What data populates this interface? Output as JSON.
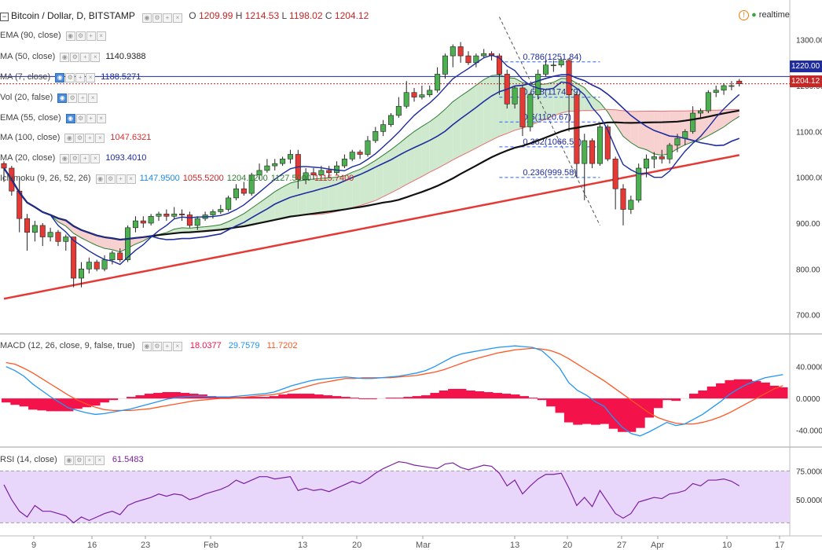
{
  "symbol_title": "Bitcoin / Dollar, D, BITSTAMP",
  "ohlc": {
    "o_label": "O",
    "o": "1209.99",
    "h_label": "H",
    "h": "1214.53",
    "l_label": "L",
    "l": "1198.02",
    "c_label": "C",
    "c": "1204.12"
  },
  "realtime_label": "realtime",
  "colors": {
    "up": "#4caf50",
    "down": "#e53935",
    "ma7": "#1e2c9e",
    "ema90": "#e53935",
    "ma50": "#111111",
    "macd": "#2196f3",
    "signal": "#ff5722",
    "hist": "#f3124a",
    "rsi": "#7b1fa2",
    "rsi_band": "#e9d7fb",
    "cloud_up": "#cfe9cf",
    "cloud_down": "#f7d0d0"
  },
  "overlays": [
    {
      "name": "EMA (90, close)",
      "value": "",
      "color": "#777"
    },
    {
      "name": "MA (50, close)",
      "value": "1140.9388",
      "color": "#222"
    },
    {
      "name": "MA (7, close)",
      "value": "1188.5271",
      "color": "#1e2c9e"
    },
    {
      "name": "Vol (20, false)",
      "value": "",
      "color": "#777"
    },
    {
      "name": "EMA (55, close)",
      "value": "",
      "color": "#777"
    },
    {
      "name": "MA (100, close)",
      "value": "1047.6321",
      "color": "#d32f2f"
    },
    {
      "name": "MA (20, close)",
      "value": "1093.4010",
      "color": "#1e2c9e"
    }
  ],
  "ichimoku": {
    "name": "Ichimoku (9, 26, 52, 26)",
    "values": [
      "1147.9500",
      "1055.5200",
      "1204.1200",
      "1127.5000",
      "1115.7400"
    ]
  },
  "price_axis": [
    "1300.00",
    "1200.00",
    "1100.00",
    "1000.00",
    "900.00",
    "800.00",
    "700.00"
  ],
  "price_tags": {
    "line1": "1220.00",
    "line2": "1204.12"
  },
  "fib_levels": [
    {
      "label": "0.786(1251.84)",
      "price": 1251.84
    },
    {
      "label": "0.618(1174.79)",
      "price": 1174.79
    },
    {
      "label": "0.5(1120.67)",
      "price": 1120.67
    },
    {
      "label": "0.382(1066.54)",
      "price": 1066.54
    },
    {
      "label": "0.236(999.58)",
      "price": 999.58
    }
  ],
  "macd": {
    "name": "MACD (12, 26, close, 9, false, true)",
    "values": [
      "18.0377",
      "29.7579",
      "11.7202"
    ],
    "axis": [
      "40.0000",
      "0.0000",
      "-40.0000"
    ]
  },
  "rsi": {
    "name": "RSI (14, close)",
    "value": "61.5483",
    "axis": [
      "75.0000",
      "50.0000"
    ]
  },
  "x_axis": [
    "9",
    "16",
    "23",
    "Feb",
    "13",
    "20",
    "Mar",
    "13",
    "20",
    "27",
    "Apr",
    "10",
    "17"
  ],
  "chart_data": [
    {
      "type": "candlestick",
      "title": "Bitcoin / Dollar, D, BITSTAMP",
      "ylim": [
        660,
        1380
      ],
      "x_start": "2017-01-02",
      "x_end": "2017-04-18",
      "candles": [
        [
          1030,
          1020,
          1035,
          990
        ],
        [
          1020,
          970,
          1025,
          960
        ],
        [
          970,
          910,
          1000,
          880
        ],
        [
          910,
          880,
          920,
          840
        ],
        [
          880,
          895,
          905,
          860
        ],
        [
          895,
          870,
          900,
          850
        ],
        [
          870,
          880,
          890,
          860
        ],
        [
          880,
          860,
          885,
          850
        ],
        [
          860,
          870,
          875,
          840
        ],
        [
          870,
          780,
          870,
          760
        ],
        [
          780,
          800,
          815,
          760
        ],
        [
          800,
          815,
          825,
          790
        ],
        [
          815,
          800,
          820,
          795
        ],
        [
          800,
          820,
          830,
          795
        ],
        [
          820,
          835,
          840,
          810
        ],
        [
          835,
          820,
          845,
          815
        ],
        [
          820,
          890,
          895,
          815
        ],
        [
          890,
          905,
          915,
          880
        ],
        [
          905,
          900,
          915,
          890
        ],
        [
          900,
          915,
          920,
          895
        ],
        [
          915,
          920,
          925,
          905
        ],
        [
          920,
          915,
          930,
          905
        ],
        [
          915,
          920,
          935,
          910
        ],
        [
          920,
          918,
          930,
          905
        ],
        [
          918,
          895,
          925,
          890
        ],
        [
          895,
          910,
          915,
          885
        ],
        [
          910,
          918,
          925,
          905
        ],
        [
          918,
          925,
          930,
          910
        ],
        [
          925,
          930,
          940,
          920
        ],
        [
          930,
          955,
          960,
          925
        ],
        [
          955,
          975,
          985,
          950
        ],
        [
          975,
          965,
          990,
          960
        ],
        [
          965,
          1005,
          1010,
          960
        ],
        [
          1005,
          1015,
          1030,
          995
        ],
        [
          1015,
          1025,
          1040,
          1010
        ],
        [
          1025,
          1030,
          1040,
          1015
        ],
        [
          1030,
          1040,
          1045,
          1025
        ],
        [
          1040,
          1050,
          1060,
          1030
        ],
        [
          1050,
          995,
          1060,
          975
        ],
        [
          995,
          1010,
          1020,
          985
        ],
        [
          1010,
          1005,
          1020,
          995
        ],
        [
          1005,
          1015,
          1025,
          1000
        ],
        [
          1015,
          1010,
          1025,
          1000
        ],
        [
          1010,
          1025,
          1035,
          1005
        ],
        [
          1025,
          1040,
          1050,
          1020
        ],
        [
          1040,
          1055,
          1060,
          1035
        ],
        [
          1055,
          1050,
          1060,
          1040
        ],
        [
          1050,
          1080,
          1090,
          1045
        ],
        [
          1080,
          1100,
          1110,
          1075
        ],
        [
          1100,
          1115,
          1125,
          1090
        ],
        [
          1115,
          1135,
          1140,
          1110
        ],
        [
          1135,
          1155,
          1175,
          1130
        ],
        [
          1155,
          1185,
          1210,
          1150
        ],
        [
          1185,
          1175,
          1195,
          1165
        ],
        [
          1175,
          1180,
          1200,
          1170
        ],
        [
          1180,
          1190,
          1200,
          1175
        ],
        [
          1190,
          1225,
          1240,
          1185
        ],
        [
          1225,
          1265,
          1270,
          1215
        ],
        [
          1265,
          1285,
          1290,
          1240
        ],
        [
          1285,
          1265,
          1295,
          1250
        ],
        [
          1265,
          1250,
          1275,
          1245
        ],
        [
          1250,
          1265,
          1270,
          1240
        ],
        [
          1265,
          1270,
          1280,
          1260
        ],
        [
          1270,
          1265,
          1275,
          1255
        ],
        [
          1265,
          1225,
          1270,
          1180
        ],
        [
          1225,
          1160,
          1235,
          1150
        ],
        [
          1160,
          1195,
          1200,
          1150
        ],
        [
          1195,
          1110,
          1200,
          1090
        ],
        [
          1110,
          1180,
          1185,
          1100
        ],
        [
          1180,
          1225,
          1235,
          1170
        ],
        [
          1225,
          1245,
          1255,
          1220
        ],
        [
          1245,
          1245,
          1255,
          1230
        ],
        [
          1245,
          1255,
          1260,
          1240
        ],
        [
          1255,
          1180,
          1260,
          1100
        ],
        [
          1180,
          1030,
          1185,
          1000
        ],
        [
          1030,
          1080,
          1095,
          950
        ],
        [
          1080,
          1030,
          1085,
          1020
        ],
        [
          1030,
          1110,
          1115,
          1025
        ],
        [
          1110,
          1040,
          1115,
          1035
        ],
        [
          1040,
          975,
          1045,
          930
        ],
        [
          975,
          930,
          985,
          895
        ],
        [
          930,
          950,
          960,
          920
        ],
        [
          950,
          1020,
          1030,
          945
        ],
        [
          1020,
          1040,
          1050,
          1000
        ],
        [
          1040,
          1045,
          1055,
          1020
        ],
        [
          1045,
          1040,
          1060,
          1030
        ],
        [
          1040,
          1070,
          1075,
          1030
        ],
        [
          1070,
          1085,
          1095,
          1055
        ],
        [
          1085,
          1100,
          1105,
          1070
        ],
        [
          1100,
          1140,
          1155,
          1095
        ],
        [
          1140,
          1145,
          1150,
          1130
        ],
        [
          1145,
          1185,
          1190,
          1140
        ],
        [
          1185,
          1190,
          1200,
          1175
        ],
        [
          1190,
          1200,
          1205,
          1180
        ],
        [
          1200,
          1200,
          1210,
          1190
        ],
        [
          1209.99,
          1204.12,
          1214.53,
          1198.02
        ]
      ],
      "series": [
        {
          "name": "MA (7, close)",
          "values": []
        },
        {
          "name": "MA (50, close)",
          "values": []
        },
        {
          "name": "MA (100, close)",
          "values": []
        }
      ]
    },
    {
      "type": "line",
      "title": "MACD (12, 26, close, 9, false, true)",
      "ylim": [
        -60,
        80
      ],
      "series": [
        {
          "name": "MACD",
          "values": [
            40,
            35,
            28,
            18,
            10,
            2,
            -5,
            -12,
            -15,
            -18,
            -20,
            -19,
            -17,
            -15,
            -13,
            -10,
            -7,
            -4,
            -1,
            1,
            2,
            3,
            3,
            2,
            2,
            2,
            3,
            4,
            5,
            6,
            8,
            12,
            16,
            19,
            22,
            24,
            25,
            26,
            27,
            26,
            25,
            25,
            26,
            27,
            28,
            30,
            32,
            35,
            40,
            46,
            52,
            56,
            58,
            60,
            62,
            64,
            65,
            66,
            65,
            64,
            60,
            50,
            38,
            20,
            10,
            4,
            -4,
            -10,
            -24,
            -36,
            -44,
            -47,
            -42,
            -36,
            -30,
            -34,
            -32,
            -26,
            -20,
            -12,
            -4,
            5,
            12,
            18,
            22,
            26,
            28,
            30
          ]
        },
        {
          "name": "Signal",
          "values": [
            45,
            43,
            38,
            32,
            25,
            18,
            11,
            4,
            -2,
            -7,
            -11,
            -14,
            -15,
            -15,
            -15,
            -14,
            -13,
            -11,
            -9,
            -7,
            -5,
            -3,
            -2,
            -1,
            0,
            0,
            1,
            2,
            3,
            4,
            5,
            7,
            10,
            13,
            16,
            19,
            21,
            23,
            25,
            25,
            26,
            26,
            26,
            26,
            27,
            28,
            29,
            31,
            33,
            36,
            40,
            44,
            48,
            51,
            54,
            57,
            59,
            61,
            62,
            63,
            62,
            60,
            56,
            50,
            43,
            36,
            29,
            22,
            14,
            6,
            -2,
            -10,
            -18,
            -24,
            -28,
            -31,
            -32,
            -32,
            -30,
            -27,
            -23,
            -18,
            -12,
            -6,
            0,
            6,
            12,
            16
          ]
        },
        {
          "name": "Histogram",
          "values": [
            -5,
            -8,
            -10,
            -14,
            -15,
            -16,
            -16,
            -16,
            -13,
            -11,
            -9,
            -5,
            -2,
            0,
            2,
            4,
            6,
            7,
            8,
            8,
            7,
            6,
            5,
            3,
            2,
            2,
            2,
            2,
            2,
            2,
            3,
            5,
            6,
            6,
            6,
            5,
            4,
            3,
            2,
            1,
            -1,
            -1,
            0,
            1,
            1,
            2,
            3,
            4,
            7,
            10,
            12,
            12,
            10,
            9,
            8,
            7,
            6,
            5,
            3,
            1,
            -2,
            -10,
            -18,
            -30,
            -33,
            -32,
            -33,
            -32,
            -38,
            -42,
            -42,
            -37,
            -24,
            -12,
            -2,
            -3,
            0,
            6,
            10,
            15,
            19,
            23,
            24,
            24,
            22,
            20,
            16,
            14
          ]
        }
      ]
    },
    {
      "type": "line",
      "title": "RSI (14, close)",
      "ylim": [
        20,
        95
      ],
      "series": [
        {
          "name": "RSI",
          "values": [
            63,
            50,
            40,
            35,
            45,
            40,
            40,
            38,
            36,
            30,
            35,
            32,
            35,
            38,
            40,
            37,
            45,
            48,
            50,
            52,
            55,
            53,
            55,
            54,
            50,
            52,
            55,
            57,
            59,
            62,
            67,
            64,
            67,
            70,
            70,
            68,
            69,
            70,
            58,
            60,
            58,
            59,
            57,
            60,
            63,
            66,
            64,
            68,
            73,
            77,
            80,
            83,
            82,
            80,
            79,
            78,
            77,
            81,
            82,
            78,
            76,
            78,
            80,
            79,
            73,
            62,
            67,
            55,
            62,
            68,
            72,
            72,
            73,
            60,
            45,
            52,
            44,
            58,
            48,
            38,
            34,
            38,
            48,
            50,
            52,
            51,
            55,
            56,
            58,
            64,
            62,
            67,
            67,
            68,
            66,
            62
          ]
        }
      ]
    }
  ]
}
